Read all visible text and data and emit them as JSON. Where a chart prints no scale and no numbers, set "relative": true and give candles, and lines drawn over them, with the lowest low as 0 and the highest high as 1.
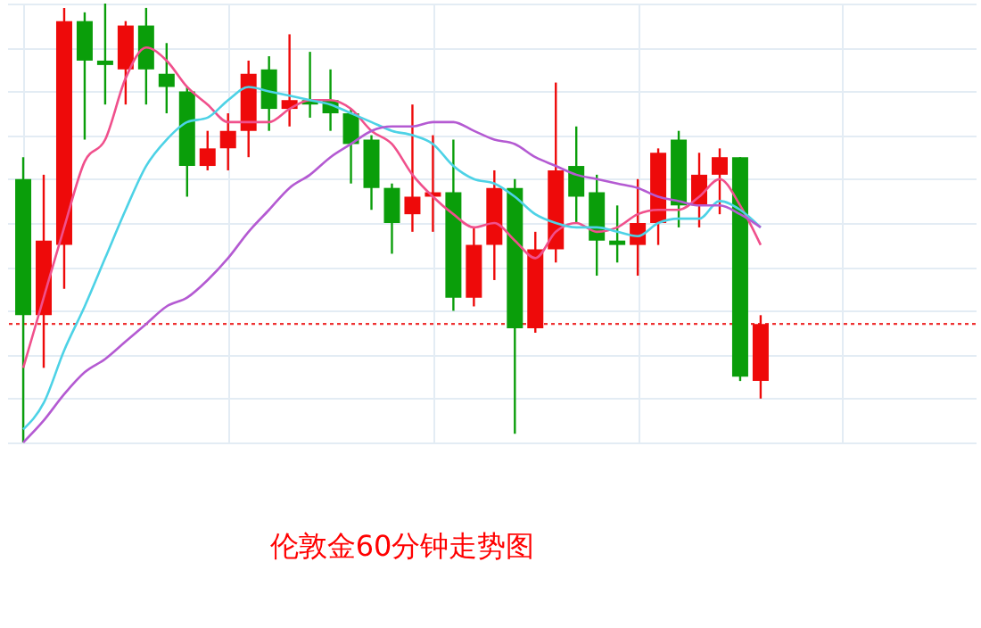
{
  "chart_data": {
    "type": "candlestick",
    "title": "伦敦金60分钟走势图",
    "relative": true,
    "grid": true,
    "categories": [
      null,
      null,
      null,
      null,
      null,
      null,
      null,
      null,
      null,
      null,
      null,
      null,
      null,
      null,
      null,
      null,
      null,
      null,
      null,
      null,
      null,
      null,
      null,
      null,
      null,
      null,
      null,
      null,
      null,
      null,
      null,
      null,
      null,
      null,
      null,
      null,
      null
    ],
    "ohlc": [
      [
        0.6,
        0.65,
        0,
        0.29
      ],
      [
        0.29,
        0.61,
        0.17,
        0.46
      ],
      [
        0.45,
        0.99,
        0.35,
        0.96
      ],
      [
        0.96,
        0.98,
        0.69,
        0.87
      ],
      [
        0.87,
        1,
        0.77,
        0.86
      ],
      [
        0.85,
        0.96,
        0.77,
        0.95
      ],
      [
        0.95,
        0.99,
        0.77,
        0.85
      ],
      [
        0.84,
        0.91,
        0.75,
        0.81
      ],
      [
        0.8,
        0.81,
        0.56,
        0.63
      ],
      [
        0.63,
        0.71,
        0.62,
        0.67
      ],
      [
        0.67,
        0.75,
        0.62,
        0.71
      ],
      [
        0.71,
        0.87,
        0.65,
        0.84
      ],
      [
        0.85,
        0.88,
        0.71,
        0.76
      ],
      [
        0.76,
        0.93,
        0.72,
        0.78
      ],
      [
        0.78,
        0.89,
        0.74,
        0.77
      ],
      [
        0.78,
        0.85,
        0.71,
        0.75
      ],
      [
        0.75,
        0.76,
        0.59,
        0.68
      ],
      [
        0.69,
        0.7,
        0.53,
        0.58
      ],
      [
        0.58,
        0.59,
        0.43,
        0.5
      ],
      [
        0.52,
        0.77,
        0.48,
        0.56
      ],
      [
        0.56,
        0.7,
        0.48,
        0.57
      ],
      [
        0.57,
        0.69,
        0.3,
        0.33
      ],
      [
        0.33,
        0.49,
        0.31,
        0.45
      ],
      [
        0.45,
        0.62,
        0.37,
        0.58
      ],
      [
        0.58,
        0.6,
        0.02,
        0.26
      ],
      [
        0.26,
        0.48,
        0.25,
        0.44
      ],
      [
        0.44,
        0.82,
        0.41,
        0.62
      ],
      [
        0.63,
        0.72,
        0.5,
        0.56
      ],
      [
        0.57,
        0.61,
        0.38,
        0.46
      ],
      [
        0.46,
        0.54,
        0.41,
        0.45
      ],
      [
        0.45,
        0.6,
        0.38,
        0.5
      ],
      [
        0.5,
        0.67,
        0.45,
        0.66
      ],
      [
        0.69,
        0.71,
        0.49,
        0.54
      ],
      [
        0.54,
        0.66,
        0.49,
        0.61
      ],
      [
        0.61,
        0.67,
        0.52,
        0.65
      ],
      [
        0.65,
        0.65,
        0.14,
        0.15
      ],
      [
        0.14,
        0.29,
        0.1,
        0.27
      ]
    ],
    "colors": [
      "#0a9e0a",
      "#ee0a0a",
      "#ee0a0a",
      "#0a9e0a",
      "#0a9e0a",
      "#ee0a0a",
      "#0a9e0a",
      "#0a9e0a",
      "#0a9e0a",
      "#ee0a0a",
      "#ee0a0a",
      "#ee0a0a",
      "#0a9e0a",
      "#ee0a0a",
      "#0a9e0a",
      "#0a9e0a",
      "#0a9e0a",
      "#0a9e0a",
      "#0a9e0a",
      "#ee0a0a",
      "#ee0a0a",
      "#0a9e0a",
      "#ee0a0a",
      "#ee0a0a",
      "#0a9e0a",
      "#ee0a0a",
      "#ee0a0a",
      "#0a9e0a",
      "#0a9e0a",
      "#0a9e0a",
      "#ee0a0a",
      "#ee0a0a",
      "#0a9e0a",
      "#ee0a0a",
      "#ee0a0a",
      "#0a9e0a",
      "#ee0a0a"
    ],
    "series": [
      {
        "type": "line",
        "color": "#f0508c",
        "values": [
          0.17,
          0.33,
          0.49,
          0.64,
          0.69,
          0.83,
          0.9,
          0.87,
          0.81,
          0.77,
          0.73,
          0.73,
          0.73,
          0.76,
          0.78,
          0.78,
          0.76,
          0.71,
          0.68,
          0.61,
          0.56,
          0.52,
          0.49,
          0.5,
          0.46,
          0.42,
          0.48,
          0.5,
          0.48,
          0.49,
          0.52,
          0.53,
          0.53,
          0.56,
          0.6,
          0.54,
          0.45
        ]
      },
      {
        "type": "line",
        "color": "#4dd2e6",
        "values": [
          0.03,
          0.09,
          0.21,
          0.31,
          0.42,
          0.53,
          0.63,
          0.69,
          0.73,
          0.74,
          0.78,
          0.81,
          0.8,
          0.79,
          0.78,
          0.77,
          0.75,
          0.73,
          0.71,
          0.7,
          0.68,
          0.63,
          0.6,
          0.59,
          0.56,
          0.52,
          0.5,
          0.49,
          0.49,
          0.48,
          0.47,
          0.5,
          0.51,
          0.51,
          0.55,
          0.53,
          0.49
        ]
      },
      {
        "type": "line",
        "color": "#b45ad2",
        "values": [
          0,
          0.05,
          0.11,
          0.16,
          0.19,
          0.23,
          0.27,
          0.31,
          0.33,
          0.37,
          0.42,
          0.48,
          0.53,
          0.58,
          0.61,
          0.65,
          0.68,
          0.71,
          0.72,
          0.72,
          0.73,
          0.73,
          0.71,
          0.69,
          0.68,
          0.65,
          0.63,
          0.61,
          0.6,
          0.59,
          0.58,
          0.56,
          0.55,
          0.54,
          0.54,
          0.52,
          0.49
        ]
      }
    ],
    "ref_lines": [
      {
        "axis": "y",
        "value": 0.27,
        "color": "#ee3333",
        "line_style": "dotted"
      }
    ]
  }
}
